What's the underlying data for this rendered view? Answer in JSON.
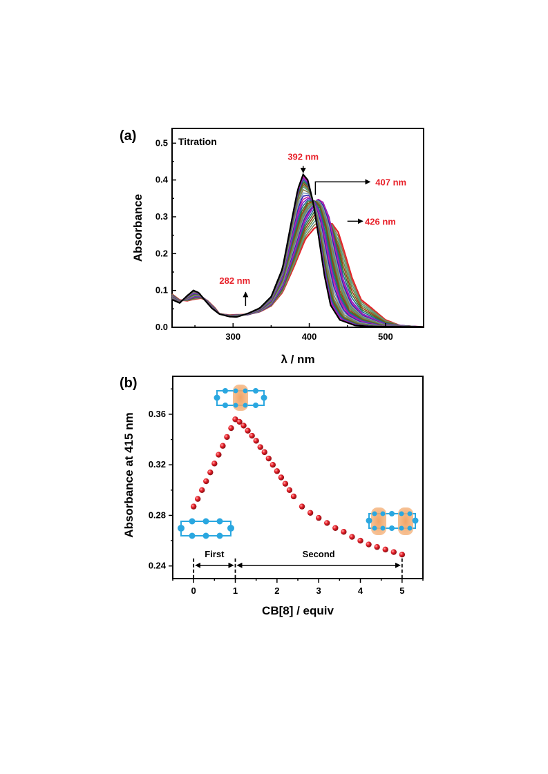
{
  "chart_data": [
    {
      "panel": "(a)",
      "type": "line",
      "title": "Titration",
      "xlabel": "λ / nm",
      "ylabel": "Absorbance",
      "xlim": [
        220,
        550
      ],
      "ylim": [
        0.0,
        0.54
      ],
      "xticks": [
        300,
        400,
        500
      ],
      "yticks": [
        0.0,
        0.1,
        0.2,
        0.3,
        0.4,
        0.5
      ],
      "xtick_labels": [
        "300",
        "400",
        "500"
      ],
      "ytick_labels": [
        "0.0",
        "0.1",
        "0.2",
        "0.3",
        "0.4",
        "0.5"
      ],
      "grid": false,
      "series_count": 30,
      "series": [
        {
          "values": [
            [
              220,
              0.075
            ],
            [
              230,
              0.066
            ],
            [
              240,
              0.086
            ],
            [
              248,
              0.1
            ],
            [
              255,
              0.094
            ],
            [
              262,
              0.076
            ],
            [
              272,
              0.052
            ],
            [
              282,
              0.036
            ],
            [
              295,
              0.029
            ],
            [
              305,
              0.028
            ],
            [
              320,
              0.038
            ],
            [
              335,
              0.052
            ],
            [
              350,
              0.083
            ],
            [
              365,
              0.16
            ],
            [
              375,
              0.27
            ],
            [
              385,
              0.375
            ],
            [
              392,
              0.415
            ],
            [
              398,
              0.4
            ],
            [
              405,
              0.34
            ],
            [
              412,
              0.25
            ],
            [
              420,
              0.14
            ],
            [
              428,
              0.06
            ],
            [
              440,
              0.02
            ],
            [
              460,
              0.005
            ],
            [
              480,
              0.002
            ],
            [
              550,
              0.001
            ]
          ]
        },
        {
          "values": [
            [
              220,
              0.078
            ],
            [
              230,
              0.068
            ],
            [
              240,
              0.084
            ],
            [
              248,
              0.097
            ],
            [
              255,
              0.093
            ],
            [
              262,
              0.077
            ],
            [
              272,
              0.053
            ],
            [
              282,
              0.037
            ],
            [
              295,
              0.03
            ],
            [
              305,
              0.03
            ],
            [
              320,
              0.037
            ],
            [
              335,
              0.05
            ],
            [
              350,
              0.078
            ],
            [
              365,
              0.15
            ],
            [
              375,
              0.25
            ],
            [
              385,
              0.348
            ],
            [
              392,
              0.38
            ],
            [
              400,
              0.368
            ],
            [
              407,
              0.33
            ],
            [
              415,
              0.26
            ],
            [
              423,
              0.16
            ],
            [
              432,
              0.08
            ],
            [
              445,
              0.03
            ],
            [
              465,
              0.01
            ],
            [
              490,
              0.003
            ],
            [
              550,
              0.001
            ]
          ]
        },
        {
          "values": [
            [
              220,
              0.082
            ],
            [
              230,
              0.07
            ],
            [
              240,
              0.08
            ],
            [
              249,
              0.09
            ],
            [
              256,
              0.089
            ],
            [
              263,
              0.077
            ],
            [
              273,
              0.054
            ],
            [
              282,
              0.037
            ],
            [
              295,
              0.031
            ],
            [
              305,
              0.031
            ],
            [
              320,
              0.035
            ],
            [
              335,
              0.046
            ],
            [
              350,
              0.07
            ],
            [
              365,
              0.13
            ],
            [
              378,
              0.23
            ],
            [
              390,
              0.31
            ],
            [
              398,
              0.338
            ],
            [
              407,
              0.345
            ],
            [
              414,
              0.328
            ],
            [
              422,
              0.27
            ],
            [
              430,
              0.18
            ],
            [
              440,
              0.095
            ],
            [
              452,
              0.045
            ],
            [
              470,
              0.02
            ],
            [
              495,
              0.005
            ],
            [
              550,
              0.001
            ]
          ]
        },
        {
          "values": [
            [
              220,
              0.086
            ],
            [
              230,
              0.072
            ],
            [
              240,
              0.076
            ],
            [
              250,
              0.083
            ],
            [
              257,
              0.083
            ],
            [
              264,
              0.076
            ],
            [
              274,
              0.055
            ],
            [
              282,
              0.037
            ],
            [
              295,
              0.032
            ],
            [
              305,
              0.033
            ],
            [
              320,
              0.034
            ],
            [
              335,
              0.043
            ],
            [
              350,
              0.062
            ],
            [
              365,
              0.11
            ],
            [
              380,
              0.2
            ],
            [
              393,
              0.285
            ],
            [
              403,
              0.32
            ],
            [
              411,
              0.35
            ],
            [
              418,
              0.342
            ],
            [
              426,
              0.3
            ],
            [
              434,
              0.22
            ],
            [
              444,
              0.13
            ],
            [
              455,
              0.07
            ],
            [
              470,
              0.035
            ],
            [
              500,
              0.008
            ],
            [
              550,
              0.001
            ]
          ]
        },
        {
          "values": [
            [
              220,
              0.09
            ],
            [
              230,
              0.074
            ],
            [
              240,
              0.072
            ],
            [
              251,
              0.077
            ],
            [
              258,
              0.079
            ],
            [
              266,
              0.073
            ],
            [
              276,
              0.053
            ],
            [
              282,
              0.037
            ],
            [
              295,
              0.033
            ],
            [
              305,
              0.034
            ],
            [
              320,
              0.035
            ],
            [
              335,
              0.042
            ],
            [
              350,
              0.058
            ],
            [
              365,
              0.095
            ],
            [
              380,
              0.165
            ],
            [
              395,
              0.24
            ],
            [
              407,
              0.27
            ],
            [
              418,
              0.278
            ],
            [
              430,
              0.281
            ],
            [
              438,
              0.258
            ],
            [
              446,
              0.205
            ],
            [
              456,
              0.135
            ],
            [
              468,
              0.075
            ],
            [
              480,
              0.055
            ],
            [
              500,
              0.02
            ],
            [
              520,
              0.004
            ],
            [
              550,
              0.001
            ]
          ]
        }
      ],
      "annotations": [
        {
          "text": "392 nm",
          "x": 392,
          "y": 0.455,
          "arrow_to": [
            392,
            0.42
          ],
          "arrow": "down"
        },
        {
          "text": "407 nm",
          "x": 407,
          "y": 0.395,
          "arrow": "right"
        },
        {
          "text": "426 nm",
          "x": 426,
          "y": 0.288,
          "arrow": "right"
        },
        {
          "text": "282 nm",
          "x": 282,
          "y": 0.118,
          "arrow_to": [
            282,
            0.095
          ],
          "arrow": "up"
        }
      ],
      "colors": [
        "#000000",
        "#e8212a",
        "#2f1fb0",
        "#c8229a",
        "#7a22c8",
        "#1f6a8f",
        "#3a7a2a",
        "#9a3a1a",
        "#6a8a3a",
        "#5a9a8a",
        "#8a7a4a",
        "#7f9fbf"
      ]
    },
    {
      "panel": "(b)",
      "type": "scatter",
      "xlabel": "CB[8] / equiv",
      "ylabel": "Absorbance at 415 nm",
      "xlim": [
        -0.5,
        5.5
      ],
      "ylim": [
        0.23,
        0.39
      ],
      "xticks": [
        0,
        1,
        2,
        3,
        4,
        5
      ],
      "yticks": [
        0.24,
        0.28,
        0.32,
        0.36
      ],
      "xtick_labels": [
        "0",
        "1",
        "2",
        "3",
        "4",
        "5"
      ],
      "ytick_labels": [
        "0.24",
        "0.28",
        "0.32",
        "0.36"
      ],
      "grid": false,
      "x": [
        0.0,
        0.1,
        0.2,
        0.3,
        0.4,
        0.5,
        0.6,
        0.7,
        0.8,
        0.9,
        1.0,
        1.1,
        1.2,
        1.3,
        1.4,
        1.5,
        1.6,
        1.7,
        1.8,
        1.9,
        2.0,
        2.1,
        2.2,
        2.3,
        2.4,
        2.6,
        2.8,
        3.0,
        3.2,
        3.4,
        3.6,
        3.8,
        4.0,
        4.2,
        4.4,
        4.6,
        4.8,
        5.0
      ],
      "y": [
        0.287,
        0.293,
        0.3,
        0.307,
        0.314,
        0.321,
        0.328,
        0.335,
        0.342,
        0.349,
        0.356,
        0.354,
        0.351,
        0.347,
        0.343,
        0.339,
        0.334,
        0.33,
        0.325,
        0.32,
        0.315,
        0.31,
        0.305,
        0.3,
        0.295,
        0.287,
        0.282,
        0.278,
        0.274,
        0.27,
        0.267,
        0.263,
        0.26,
        0.257,
        0.255,
        0.253,
        0.251,
        0.249
      ],
      "marker_color": "#e8212a",
      "stages": [
        {
          "label": "First",
          "from": 0,
          "to": 1
        },
        {
          "label": "Second",
          "from": 1,
          "to": 5
        }
      ]
    }
  ]
}
